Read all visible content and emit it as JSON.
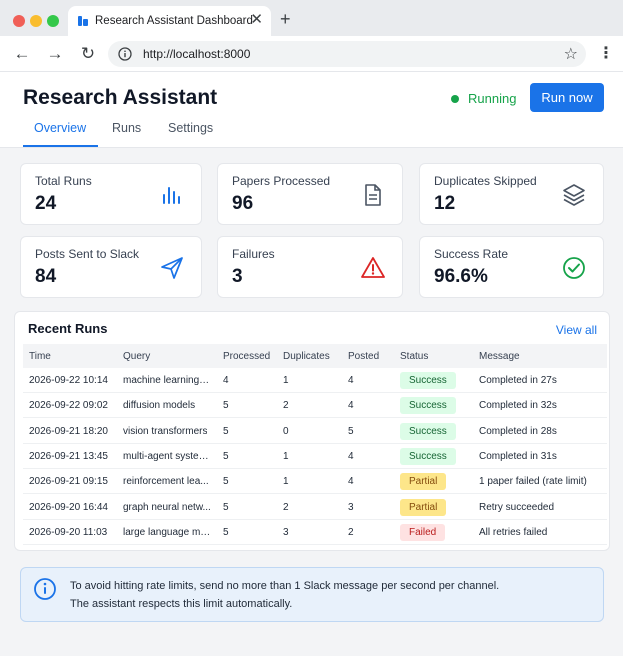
{
  "browser": {
    "tab_title": "Research Assistant Dashboard",
    "tab_close": "✕",
    "new_tab": "+",
    "url": "http://localhost:8000"
  },
  "header": {
    "title": "Research Assistant",
    "status_label": "Running",
    "run_button": "Run now",
    "tabs": [
      "Overview",
      "Runs",
      "Settings"
    ]
  },
  "stats": [
    {
      "label": "Total Runs",
      "value": "24",
      "icon": "bar-chart-icon"
    },
    {
      "label": "Papers Processed",
      "value": "96",
      "icon": "document-icon"
    },
    {
      "label": "Duplicates Skipped",
      "value": "12",
      "icon": "layers-icon"
    },
    {
      "label": "Posts Sent to Slack",
      "value": "84",
      "icon": "send-icon"
    },
    {
      "label": "Failures",
      "value": "3",
      "icon": "warning-icon"
    },
    {
      "label": "Success Rate",
      "value": "96.6%",
      "icon": "check-circle-icon"
    }
  ],
  "recent_runs": {
    "title": "Recent Runs",
    "view_all": "View all",
    "columns": [
      "Time",
      "Query",
      "Processed",
      "Duplicates",
      "Posted",
      "Status",
      "Message"
    ],
    "rows": [
      {
        "time": "2026-09-22 10:14",
        "query": "machine learning a...",
        "processed": "4",
        "duplicates": "1",
        "posted": "4",
        "status": "Success",
        "message": "Completed in 27s"
      },
      {
        "time": "2026-09-22 09:02",
        "query": "diffusion models",
        "processed": "5",
        "duplicates": "2",
        "posted": "4",
        "status": "Success",
        "message": "Completed in 32s"
      },
      {
        "time": "2026-09-21 18:20",
        "query": "vision transformers",
        "processed": "5",
        "duplicates": "0",
        "posted": "5",
        "status": "Success",
        "message": "Completed in 28s"
      },
      {
        "time": "2026-09-21 13:45",
        "query": "multi-agent systems",
        "processed": "5",
        "duplicates": "1",
        "posted": "4",
        "status": "Success",
        "message": "Completed in 31s"
      },
      {
        "time": "2026-09-21 09:15",
        "query": "reinforcement lea...",
        "processed": "5",
        "duplicates": "1",
        "posted": "4",
        "status": "Partial",
        "message": "1 paper failed (rate limit)"
      },
      {
        "time": "2026-09-20 16:44",
        "query": "graph neural netw...",
        "processed": "5",
        "duplicates": "2",
        "posted": "3",
        "status": "Partial",
        "message": "Retry succeeded"
      },
      {
        "time": "2026-09-20 11:03",
        "query": "large language mo...",
        "processed": "5",
        "duplicates": "3",
        "posted": "2",
        "status": "Failed",
        "message": "All retries failed"
      }
    ]
  },
  "notice": {
    "line1": "To avoid hitting rate limits, send no more than 1 Slack message per second per channel.",
    "line2": "The assistant respects this limit automatically."
  },
  "colors": {
    "accent": "#1a73e8",
    "running": "#16a34a",
    "success_bg": "#dcfce7",
    "partial_bg": "#fde68a",
    "failed_bg": "#fee2e2"
  }
}
